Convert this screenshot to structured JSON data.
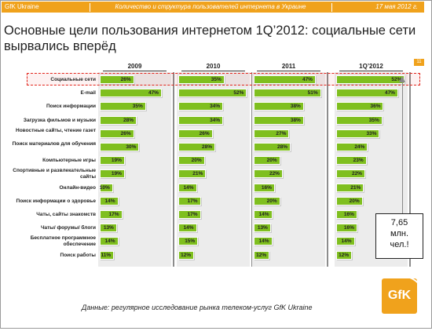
{
  "header": {
    "brand": "GfK Ukraine",
    "subject": "Количество и структура пользователей интернета в Украине",
    "date": "17 мая 2012 г."
  },
  "slide": {
    "title": "Основные цели пользования интернетом 1Q’2012: социальные сети вырвались вперёд",
    "page_number": "11",
    "footnote": "Данные: регулярное исследование рынка телеком-услуг GfK Ukraine",
    "logo_text": "GfK",
    "callout": {
      "value": "7,65",
      "unit_line1": "млн.",
      "unit_line2": "чел.!"
    }
  },
  "chart_data": {
    "type": "bar",
    "orientation": "horizontal",
    "title": "Основные цели пользования интернетом 1Q’2012: социальные сети вырвались вперёд",
    "categories": [
      "Социальные сети",
      "E-mail",
      "Поиск информации",
      "Загрузка фильмов и музыки",
      "Новостные сайты, чтение газет",
      "Поиск материалов для обучения",
      "Компьютерные игры",
      "Спортивные и развлекательные сайты",
      "Онлайн-видео",
      "Поиск информации о здоровье",
      "Чаты, сайты знакомств",
      "Чаты/ форумы/ блоги",
      "Бесплатное программное обеспечение",
      "Поиск работы"
    ],
    "series": [
      {
        "name": "2009",
        "values": [
          26,
          47,
          35,
          28,
          26,
          30,
          19,
          19,
          10,
          14,
          17,
          13,
          14,
          11
        ]
      },
      {
        "name": "2010",
        "values": [
          35,
          52,
          34,
          34,
          26,
          28,
          20,
          21,
          14,
          17,
          17,
          14,
          15,
          12
        ]
      },
      {
        "name": "2011",
        "values": [
          47,
          51,
          38,
          38,
          27,
          28,
          20,
          22,
          16,
          20,
          14,
          13,
          14,
          12
        ]
      },
      {
        "name": "1Q’2012",
        "values": [
          52,
          47,
          36,
          35,
          33,
          24,
          23,
          22,
          21,
          20,
          16,
          16,
          14,
          12
        ]
      }
    ],
    "unit": "%",
    "highlighted_category": "Социальные сети",
    "grid": false,
    "legend": "none",
    "colors": {
      "bar": "#7fbf1f",
      "accent": "#f0a21c",
      "highlight": "#e2231a"
    }
  }
}
